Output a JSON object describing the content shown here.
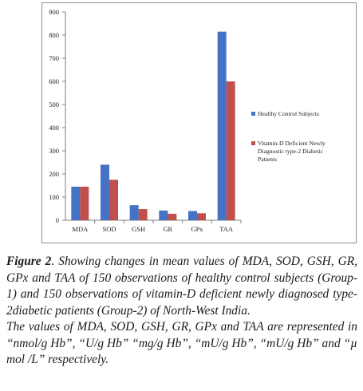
{
  "chart_data": {
    "type": "bar",
    "categories": [
      "MDA",
      "SOD",
      "GSH",
      "GR",
      "GPx",
      "TAA"
    ],
    "series": [
      {
        "name": "Healthy Control Subjects",
        "values": [
          145,
          240,
          65,
          42,
          40,
          815
        ],
        "color": "#4472c4"
      },
      {
        "name": "Vitamin-D Deficient Newly Diagnostic type-2 Diabetic Patients",
        "values": [
          145,
          175,
          48,
          28,
          30,
          600
        ],
        "color": "#c0504d"
      }
    ],
    "legend_lines": [
      [
        "Healthy Control Subjects"
      ],
      [
        "Vitamin-D Deficient Newly",
        "Diagnostic type-2 Diabetic",
        "Patients"
      ]
    ],
    "ylim": [
      0,
      900
    ],
    "yticks": [
      "0",
      "100",
      "200",
      "300",
      "400",
      "500",
      "600",
      "700",
      "800",
      "900"
    ],
    "grid": false,
    "legend_position": "right",
    "title": "",
    "xlabel": "",
    "ylabel": ""
  },
  "caption": {
    "figure_label": "Figure 2",
    "text1": ". Showing changes in mean values of MDA, SOD, GSH, GR, GPx and TAA of 150 observations of healthy control subjects (Group-1) and 150 observations of vitamin-D deficient newly diagnosed type-2diabetic patients (Group-2) of North-West India.",
    "text2": "The values of MDA, SOD, GSH, GR, GPx and TAA are represented in “nmol/g Hb”, “U/g Hb” “mg/g Hb”, “mU/g Hb”, “mU/g Hb” and “µ mol /L” respectively."
  }
}
